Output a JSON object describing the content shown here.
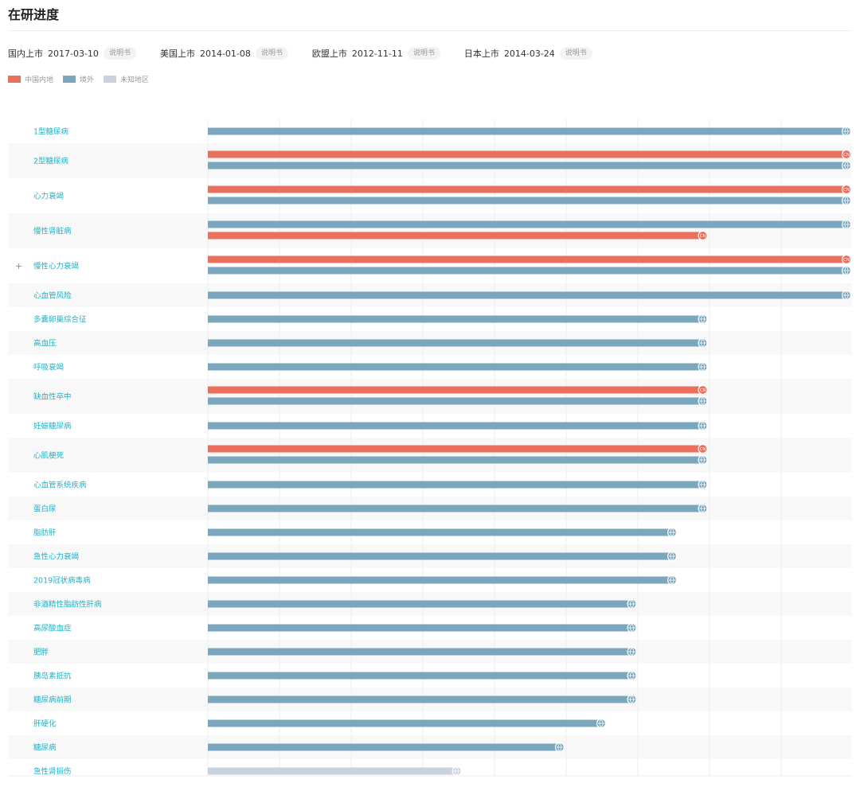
{
  "page": {
    "title": "在研进度"
  },
  "approvals": [
    {
      "label": "国内上市",
      "date": "2017-03-10",
      "link": "说明书"
    },
    {
      "label": "美国上市",
      "date": "2014-01-08",
      "link": "说明书"
    },
    {
      "label": "欧盟上市",
      "date": "2012-11-11",
      "link": "说明书"
    },
    {
      "label": "日本上市",
      "date": "2014-03-24",
      "link": "说明书"
    }
  ],
  "legend": [
    {
      "label": "中国内地",
      "color": "#e8705d"
    },
    {
      "label": "境外",
      "color": "#7aa7be"
    },
    {
      "label": "未知地区",
      "color": "#c8d3df"
    }
  ],
  "colors": {
    "china": "#e8705d",
    "overseas": "#7aa7be",
    "unknown": "#c8d3df",
    "label": "#1fb3c9",
    "row_alt": "#f8f8f8",
    "grid": "#eeeeee"
  },
  "chart_data": {
    "type": "bar",
    "orientation": "horizontal",
    "value_unit": "relative development stage (1.0 = longest bar)",
    "categories": [
      "1型糖尿病",
      "2型糖尿病",
      "心力衰竭",
      "慢性肾脏病",
      "慢性心力衰竭",
      "心血管风险",
      "多囊卵巢综合征",
      "高血压",
      "呼吸衰竭",
      "缺血性卒中",
      "妊娠糖尿病",
      "心肌梗死",
      "心血管系统疾病",
      "蛋白尿",
      "脂肪肝",
      "急性心力衰竭",
      "2019冠状病毒病",
      "非酒精性脂肪性肝病",
      "高尿酸血症",
      "肥胖",
      "胰岛素抵抗",
      "糖尿病前期",
      "肝硬化",
      "糖尿病",
      "急性肾损伤"
    ],
    "expandable": [
      false,
      false,
      false,
      false,
      true,
      false,
      false,
      false,
      false,
      false,
      false,
      false,
      false,
      false,
      false,
      false,
      false,
      false,
      false,
      false,
      false,
      false,
      false,
      false,
      false
    ],
    "bars": [
      [
        {
          "region": "overseas",
          "value": 1.0
        }
      ],
      [
        {
          "region": "china",
          "value": 1.0
        },
        {
          "region": "overseas",
          "value": 1.0
        }
      ],
      [
        {
          "region": "china",
          "value": 1.0
        },
        {
          "region": "overseas",
          "value": 1.0
        }
      ],
      [
        {
          "region": "overseas",
          "value": 1.0
        },
        {
          "region": "china",
          "value": 0.775
        }
      ],
      [
        {
          "region": "china",
          "value": 1.0
        },
        {
          "region": "overseas",
          "value": 1.0
        }
      ],
      [
        {
          "region": "overseas",
          "value": 1.0
        }
      ],
      [
        {
          "region": "overseas",
          "value": 0.775
        }
      ],
      [
        {
          "region": "overseas",
          "value": 0.775
        }
      ],
      [
        {
          "region": "overseas",
          "value": 0.775
        }
      ],
      [
        {
          "region": "china",
          "value": 0.775
        },
        {
          "region": "overseas",
          "value": 0.775
        }
      ],
      [
        {
          "region": "overseas",
          "value": 0.775
        }
      ],
      [
        {
          "region": "china",
          "value": 0.775
        },
        {
          "region": "overseas",
          "value": 0.775
        }
      ],
      [
        {
          "region": "overseas",
          "value": 0.775
        }
      ],
      [
        {
          "region": "overseas",
          "value": 0.775
        }
      ],
      [
        {
          "region": "overseas",
          "value": 0.727
        }
      ],
      [
        {
          "region": "overseas",
          "value": 0.727
        }
      ],
      [
        {
          "region": "overseas",
          "value": 0.727
        }
      ],
      [
        {
          "region": "overseas",
          "value": 0.664
        }
      ],
      [
        {
          "region": "overseas",
          "value": 0.664
        }
      ],
      [
        {
          "region": "overseas",
          "value": 0.664
        }
      ],
      [
        {
          "region": "overseas",
          "value": 0.664
        }
      ],
      [
        {
          "region": "overseas",
          "value": 0.664
        }
      ],
      [
        {
          "region": "overseas",
          "value": 0.616
        }
      ],
      [
        {
          "region": "overseas",
          "value": 0.551
        }
      ],
      [
        {
          "region": "unknown",
          "value": 0.39
        }
      ]
    ],
    "gridlines": 9
  }
}
